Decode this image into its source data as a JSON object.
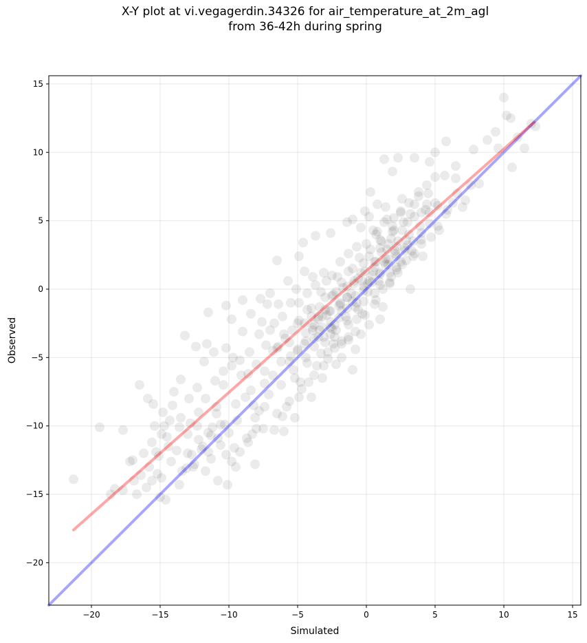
{
  "title_line1": "X-Y plot at vi.vegagerdin.34326 for air_temperature_at_2m_agl",
  "title_line2": "from 36-42h during spring",
  "chart_data": {
    "type": "scatter",
    "xlabel": "Simulated",
    "ylabel": "Observed",
    "xlim": [
      -23.1,
      15.6
    ],
    "ylim": [
      -23.1,
      15.6
    ],
    "xticks": [
      -20,
      -15,
      -10,
      -5,
      0,
      5,
      10,
      15
    ],
    "yticks": [
      -20,
      -15,
      -10,
      -5,
      0,
      5,
      10,
      15
    ],
    "xtick_labels": [
      "−20",
      "−15",
      "−10",
      "−5",
      "0",
      "5",
      "10",
      "15"
    ],
    "ytick_labels": [
      "−20",
      "−15",
      "−10",
      "−5",
      "0",
      "5",
      "10",
      "15"
    ],
    "grid": true,
    "point_color": "#000000",
    "point_alpha": 0.08,
    "points": [
      [
        -21.3,
        -13.9
      ],
      [
        -19.4,
        -10.1
      ],
      [
        -17.7,
        -10.3
      ],
      [
        -17.2,
        -12.6
      ],
      [
        -16.5,
        -7.0
      ],
      [
        -15.9,
        -8.0
      ],
      [
        -15.5,
        -8.4
      ],
      [
        -15.3,
        -11.9
      ],
      [
        -14.7,
        -10.0
      ],
      [
        -14.5,
        -10.8
      ],
      [
        -14.0,
        -7.5
      ],
      [
        -13.5,
        -6.6
      ],
      [
        -13.2,
        -3.4
      ],
      [
        -12.3,
        -7.2
      ],
      [
        -11.6,
        -4.0
      ],
      [
        -11.5,
        -1.7
      ],
      [
        -11.2,
        -10.1
      ],
      [
        -10.9,
        -8.6
      ],
      [
        -10.2,
        -1.2
      ],
      [
        -10.2,
        -4.3
      ],
      [
        -9.8,
        -12.6
      ],
      [
        -9.6,
        -11.6
      ],
      [
        -9.0,
        -0.8
      ],
      [
        -8.3,
        -10.6
      ],
      [
        -8.1,
        -12.8
      ],
      [
        -7.7,
        -0.7
      ],
      [
        -7.2,
        -1.1
      ],
      [
        -6.5,
        2.1
      ],
      [
        -6.0,
        -10.4
      ],
      [
        -5.2,
        -9.4
      ],
      [
        -4.9,
        2.4
      ],
      [
        -4.7,
        -7.3
      ],
      [
        -4.6,
        3.4
      ],
      [
        -4.0,
        -7.9
      ],
      [
        -3.7,
        3.9
      ],
      [
        -3.2,
        -6.5
      ],
      [
        -2.6,
        4.1
      ],
      [
        -2.2,
        -5.5
      ],
      [
        -1.4,
        4.9
      ],
      [
        -1.0,
        -5.9
      ],
      [
        -0.4,
        -3.3
      ],
      [
        -0.1,
        5.7
      ],
      [
        0.3,
        7.1
      ],
      [
        0.8,
        6.2
      ],
      [
        1.0,
        -2.2
      ],
      [
        1.3,
        9.5
      ],
      [
        1.9,
        8.6
      ],
      [
        2.3,
        9.6
      ],
      [
        3.2,
        0.0
      ],
      [
        3.5,
        9.6
      ],
      [
        4.0,
        3.6
      ],
      [
        4.6,
        9.3
      ],
      [
        5.0,
        10.0
      ],
      [
        5.8,
        10.8
      ],
      [
        6.5,
        8.1
      ],
      [
        7.2,
        6.5
      ],
      [
        7.8,
        10.2
      ],
      [
        8.2,
        7.7
      ],
      [
        8.8,
        10.9
      ],
      [
        9.4,
        11.5
      ],
      [
        9.6,
        10.3
      ],
      [
        10.0,
        14.0
      ],
      [
        10.2,
        12.7
      ],
      [
        10.5,
        12.5
      ],
      [
        10.6,
        8.9
      ],
      [
        11.0,
        11.1
      ],
      [
        11.5,
        10.3
      ],
      [
        12.0,
        12.1
      ],
      [
        12.3,
        11.9
      ],
      [
        -18.6,
        -15.0
      ],
      [
        -18.3,
        -14.6
      ],
      [
        -17.7,
        -14.7
      ],
      [
        -16.7,
        -15.0
      ],
      [
        -16.0,
        -14.5
      ],
      [
        -15.2,
        -13.5
      ],
      [
        -15.0,
        -15.2
      ],
      [
        -14.6,
        -15.4
      ],
      [
        -13.4,
        -13.3
      ],
      [
        -13.1,
        -13.1
      ],
      [
        -12.6,
        -13.0
      ],
      [
        -11.7,
        -13.3
      ],
      [
        -10.8,
        -14.0
      ],
      [
        -10.1,
        -14.3
      ],
      [
        -9.2,
        -11.9
      ],
      [
        -8.6,
        -11.2
      ],
      [
        -8.0,
        -10.2
      ],
      [
        -7.5,
        -10.2
      ],
      [
        -6.7,
        -10.3
      ],
      [
        -6.1,
        -9.3
      ],
      [
        -5.6,
        -8.2
      ],
      [
        -4.9,
        -7.9
      ],
      [
        -4.2,
        -6.8
      ],
      [
        -3.6,
        -5.6
      ],
      [
        -3.1,
        -5.6
      ],
      [
        -2.4,
        -4.0
      ],
      [
        -1.8,
        -3.8
      ],
      [
        -1.3,
        -3.5
      ],
      [
        -0.7,
        -2.2
      ],
      [
        -0.1,
        -1.9
      ],
      [
        0.6,
        -1.1
      ],
      [
        1.2,
        0.0
      ],
      [
        1.7,
        0.4
      ],
      [
        2.3,
        1.2
      ],
      [
        2.9,
        2.1
      ],
      [
        3.5,
        2.6
      ],
      [
        4.1,
        2.4
      ],
      [
        4.7,
        3.8
      ],
      [
        5.3,
        4.3
      ],
      [
        5.8,
        5.5
      ],
      [
        6.3,
        6.3
      ],
      [
        7.0,
        6.0
      ],
      [
        7.6,
        7.6
      ],
      [
        -17.0,
        -12.5
      ],
      [
        -16.2,
        -12.0
      ],
      [
        -15.6,
        -11.2
      ],
      [
        -14.9,
        -10.6
      ],
      [
        -14.3,
        -9.6
      ],
      [
        -13.6,
        -10.1
      ],
      [
        -12.9,
        -8.0
      ],
      [
        -12.2,
        -9.0
      ],
      [
        -11.7,
        -8.0
      ],
      [
        -11.0,
        -6.7
      ],
      [
        -10.4,
        -7.0
      ],
      [
        -9.8,
        -5.6
      ],
      [
        -9.2,
        -5.2
      ],
      [
        -8.5,
        -4.6
      ],
      [
        -7.8,
        -3.3
      ],
      [
        -7.3,
        -4.1
      ],
      [
        -6.7,
        -2.5
      ],
      [
        -6.1,
        -2.0
      ],
      [
        -5.5,
        -1.0
      ],
      [
        -4.9,
        -1.0
      ],
      [
        -4.3,
        -0.3
      ],
      [
        -3.7,
        0.3
      ],
      [
        -3.1,
        1.2
      ],
      [
        -2.5,
        1.0
      ],
      [
        -1.9,
        2.0
      ],
      [
        -1.3,
        2.6
      ],
      [
        -0.7,
        3.1
      ],
      [
        0.0,
        3.3
      ],
      [
        0.7,
        4.0
      ],
      [
        1.3,
        4.9
      ],
      [
        1.9,
        4.6
      ],
      [
        2.5,
        5.6
      ],
      [
        3.1,
        6.3
      ],
      [
        3.8,
        6.8
      ],
      [
        4.4,
        7.6
      ],
      [
        5.0,
        8.2
      ],
      [
        5.7,
        8.3
      ],
      [
        6.5,
        9.0
      ],
      [
        -15.8,
        -13.0
      ],
      [
        -15.1,
        -12.2
      ],
      [
        -14.4,
        -11.5
      ],
      [
        -13.8,
        -11.8
      ],
      [
        -13.0,
        -10.6
      ],
      [
        -12.3,
        -10.0
      ],
      [
        -11.5,
        -10.5
      ],
      [
        -10.9,
        -9.1
      ],
      [
        -10.3,
        -9.9
      ],
      [
        -9.5,
        -8.4
      ],
      [
        -8.8,
        -7.9
      ],
      [
        -8.2,
        -8.5
      ],
      [
        -7.4,
        -6.9
      ],
      [
        -6.8,
        -6.3
      ],
      [
        -6.2,
        -7.0
      ],
      [
        -5.6,
        -5.3
      ],
      [
        -5.0,
        -4.4
      ],
      [
        -4.4,
        -5.0
      ],
      [
        -3.8,
        -3.6
      ],
      [
        -3.2,
        -2.8
      ],
      [
        -2.6,
        -3.3
      ],
      [
        -2.0,
        -2.1
      ],
      [
        -1.4,
        -1.4
      ],
      [
        -0.8,
        -0.5
      ],
      [
        -0.2,
        -0.9
      ],
      [
        0.4,
        0.5
      ],
      [
        1.0,
        1.2
      ],
      [
        1.6,
        1.8
      ],
      [
        2.2,
        1.4
      ],
      [
        2.8,
        2.8
      ],
      [
        3.4,
        3.5
      ],
      [
        4.0,
        4.1
      ],
      [
        4.6,
        4.8
      ],
      [
        5.2,
        4.6
      ],
      [
        5.9,
        5.8
      ],
      [
        6.6,
        7.0
      ],
      [
        -4.5,
        -2.5
      ],
      [
        -4.0,
        -1.4
      ],
      [
        -3.5,
        -2.0
      ],
      [
        -3.0,
        -0.6
      ],
      [
        -2.6,
        -1.6
      ],
      [
        -2.2,
        -0.2
      ],
      [
        -1.8,
        0.5
      ],
      [
        -1.4,
        -0.6
      ],
      [
        -1.0,
        1.5
      ],
      [
        -0.6,
        0.8
      ],
      [
        -0.2,
        1.9
      ],
      [
        0.2,
        2.4
      ],
      [
        0.6,
        1.6
      ],
      [
        1.0,
        3.0
      ],
      [
        1.4,
        2.2
      ],
      [
        1.8,
        3.7
      ],
      [
        2.2,
        3.1
      ],
      [
        2.6,
        4.3
      ],
      [
        -3.8,
        -4.2
      ],
      [
        -3.4,
        -3.0
      ],
      [
        -3.0,
        -3.9
      ],
      [
        -2.6,
        -2.4
      ],
      [
        -2.2,
        -3.0
      ],
      [
        -1.8,
        -1.6
      ],
      [
        -1.4,
        -2.3
      ],
      [
        -1.0,
        -0.9
      ],
      [
        -0.6,
        -1.5
      ],
      [
        -0.2,
        -0.1
      ],
      [
        0.2,
        0.6
      ],
      [
        0.6,
        -0.3
      ],
      [
        1.0,
        1.1
      ],
      [
        1.4,
        1.8
      ],
      [
        1.8,
        0.9
      ],
      [
        2.2,
        2.4
      ],
      [
        2.6,
        1.8
      ],
      [
        3.0,
        3.2
      ],
      [
        -6.4,
        -4.2
      ],
      [
        -5.9,
        -3.6
      ],
      [
        -5.4,
        -3.0
      ],
      [
        -4.9,
        -2.3
      ],
      [
        -4.4,
        -3.8
      ],
      [
        -3.9,
        -2.8
      ],
      [
        -3.4,
        -1.3
      ],
      [
        -2.9,
        -1.9
      ],
      [
        -2.4,
        -0.4
      ],
      [
        -1.9,
        -1.1
      ],
      [
        -1.4,
        0.2
      ],
      [
        -0.9,
        0.6
      ],
      [
        -0.4,
        1.2
      ],
      [
        0.1,
        0.4
      ],
      [
        0.6,
        2.0
      ],
      [
        1.1,
        2.7
      ],
      [
        1.6,
        3.3
      ],
      [
        2.1,
        2.6
      ],
      [
        -8.6,
        -6.2
      ],
      [
        -8.0,
        -5.5
      ],
      [
        -7.4,
        -6.0
      ],
      [
        -6.8,
        -4.5
      ],
      [
        -6.2,
        -5.3
      ],
      [
        -5.6,
        -3.9
      ],
      [
        -5.0,
        -4.5
      ],
      [
        -4.4,
        -3.2
      ],
      [
        -3.8,
        -2.6
      ],
      [
        -3.2,
        -2.0
      ],
      [
        -2.6,
        -2.8
      ],
      [
        -2.0,
        -1.2
      ],
      [
        -1.4,
        -0.6
      ],
      [
        -0.8,
        -1.3
      ],
      [
        -0.2,
        0.2
      ],
      [
        0.4,
        1.0
      ],
      [
        1.0,
        0.3
      ],
      [
        1.6,
        2.2
      ],
      [
        2.2,
        1.6
      ],
      [
        2.8,
        3.0
      ],
      [
        3.4,
        2.4
      ],
      [
        4.0,
        3.3
      ],
      [
        4.6,
        5.6
      ],
      [
        5.2,
        6.1
      ],
      [
        -2.8,
        -4.6
      ],
      [
        -2.3,
        -3.5
      ],
      [
        -1.8,
        -4.0
      ],
      [
        -1.3,
        -2.6
      ],
      [
        -0.8,
        -3.1
      ],
      [
        -0.3,
        -1.8
      ],
      [
        0.2,
        -2.6
      ],
      [
        0.7,
        -0.8
      ],
      [
        1.2,
        -1.3
      ],
      [
        1.7,
        0.5
      ],
      [
        -1.0,
        5.1
      ],
      [
        -0.4,
        4.5
      ],
      [
        0.2,
        5.3
      ],
      [
        0.8,
        4.2
      ],
      [
        1.4,
        6.0
      ],
      [
        2.0,
        5.2
      ],
      [
        2.6,
        6.6
      ],
      [
        3.2,
        5.5
      ],
      [
        3.8,
        7.1
      ],
      [
        4.4,
        6.2
      ],
      [
        -9.8,
        -2.2
      ],
      [
        -9.0,
        -3.1
      ],
      [
        -8.4,
        -1.8
      ],
      [
        -7.6,
        -2.4
      ],
      [
        -7.0,
        -0.3
      ],
      [
        -6.4,
        -1.1
      ],
      [
        -5.7,
        0.6
      ],
      [
        -5.1,
        0.0
      ],
      [
        -4.5,
        1.3
      ],
      [
        -3.9,
        0.9
      ],
      [
        -12.4,
        -4.2
      ],
      [
        -11.8,
        -5.3
      ],
      [
        -11.1,
        -4.6
      ],
      [
        -10.4,
        -6.0
      ],
      [
        -9.7,
        -5.0
      ],
      [
        -9.1,
        -6.3
      ],
      [
        -8.4,
        -7.4
      ],
      [
        -7.8,
        -8.9
      ],
      [
        -7.1,
        -7.7
      ],
      [
        -6.5,
        -9.1
      ],
      [
        -5.8,
        -8.6
      ],
      [
        -5.2,
        -6.5
      ],
      [
        -15.4,
        -10.0
      ],
      [
        -14.8,
        -9.0
      ],
      [
        -14.1,
        -8.5
      ],
      [
        -13.5,
        -9.4
      ],
      [
        -12.8,
        -9.8
      ],
      [
        -12.2,
        -11.0
      ],
      [
        -11.5,
        -11.9
      ],
      [
        -10.8,
        -10.9
      ],
      [
        -10.2,
        -12.1
      ],
      [
        -9.5,
        -13.0
      ],
      [
        -13.0,
        -12.0
      ],
      [
        -12.5,
        -12.8
      ],
      [
        -11.9,
        -11.5
      ],
      [
        -11.3,
        -12.4
      ],
      [
        -10.6,
        -11.4
      ],
      [
        -10.0,
        -10.5
      ],
      [
        -9.4,
        -9.6
      ],
      [
        -8.7,
        -10.9
      ],
      [
        -8.1,
        -9.4
      ],
      [
        -7.4,
        -8.6
      ],
      [
        -3.3,
        -0.2
      ],
      [
        -2.9,
        0.6
      ],
      [
        -2.5,
        -0.5
      ],
      [
        -2.1,
        0.9
      ],
      [
        -1.7,
        0.1
      ],
      [
        -1.3,
        1.3
      ],
      [
        -0.9,
        0.4
      ],
      [
        -0.5,
        2.3
      ],
      [
        -0.1,
        1.3
      ],
      [
        0.3,
        2.9
      ],
      [
        0.7,
        2.0
      ],
      [
        1.1,
        3.5
      ],
      [
        1.5,
        2.9
      ],
      [
        1.9,
        4.2
      ],
      [
        2.3,
        3.5
      ],
      [
        2.7,
        4.9
      ],
      [
        3.1,
        4.0
      ],
      [
        3.5,
        5.3
      ],
      [
        3.9,
        4.6
      ],
      [
        4.3,
        5.8
      ],
      [
        -4.3,
        -1.5
      ],
      [
        -3.9,
        -3.0
      ],
      [
        -3.5,
        -2.2
      ],
      [
        -3.1,
        -3.5
      ],
      [
        -2.7,
        -1.6
      ],
      [
        -2.3,
        -2.6
      ],
      [
        -1.9,
        -1.0
      ],
      [
        -1.5,
        -2.0
      ],
      [
        -1.1,
        -0.3
      ],
      [
        -0.7,
        -1.0
      ],
      [
        -0.3,
        0.6
      ],
      [
        0.1,
        -0.2
      ],
      [
        0.5,
        1.3
      ],
      [
        0.9,
        0.6
      ],
      [
        1.3,
        2.0
      ],
      [
        1.7,
        1.2
      ],
      [
        2.1,
        2.8
      ],
      [
        2.5,
        2.0
      ],
      [
        2.9,
        3.6
      ],
      [
        3.3,
        2.8
      ],
      [
        -5.3,
        -5.9
      ],
      [
        -4.8,
        -6.8
      ],
      [
        -4.3,
        -5.4
      ],
      [
        -3.8,
        -6.3
      ],
      [
        -3.3,
        -4.7
      ],
      [
        -2.8,
        -5.1
      ],
      [
        -2.3,
        -4.3
      ],
      [
        -1.8,
        -5.0
      ],
      [
        -1.3,
        -3.7
      ],
      [
        -0.8,
        -4.4
      ],
      [
        0.5,
        4.3
      ],
      [
        1.0,
        3.6
      ],
      [
        1.5,
        5.1
      ],
      [
        2.0,
        4.3
      ],
      [
        2.5,
        5.7
      ],
      [
        3.0,
        4.9
      ],
      [
        3.5,
        6.2
      ],
      [
        4.0,
        5.6
      ],
      [
        4.5,
        7.0
      ],
      [
        5.0,
        6.3
      ],
      [
        -7.0,
        -3.0
      ],
      [
        -6.5,
        -4.3
      ],
      [
        -6.0,
        -3.3
      ],
      [
        -5.5,
        -4.9
      ],
      [
        -5.0,
        -2.5
      ],
      [
        -4.5,
        -4.0
      ],
      [
        -4.0,
        -2.0
      ],
      [
        -3.5,
        -3.5
      ],
      [
        -3.0,
        -1.5
      ],
      [
        -2.5,
        -2.9
      ],
      [
        -16.9,
        -14.0
      ],
      [
        -16.4,
        -13.6
      ],
      [
        -15.6,
        -14.0
      ],
      [
        -14.9,
        -13.8
      ],
      [
        -14.2,
        -12.6
      ],
      [
        -13.6,
        -14.3
      ],
      [
        -12.7,
        -12.1
      ],
      [
        -12.0,
        -11.7
      ],
      [
        -11.3,
        -10.7
      ],
      [
        -10.6,
        -9.9
      ]
    ],
    "fit_line": {
      "x": [
        -21.3,
        12.2
      ],
      "y": [
        -17.6,
        12.2
      ],
      "color": "#ff0000",
      "alpha": 0.35
    },
    "identity_line": {
      "x": [
        -23.1,
        15.6
      ],
      "y": [
        -23.1,
        15.6
      ],
      "color": "#0000ff",
      "alpha": 0.35
    }
  }
}
